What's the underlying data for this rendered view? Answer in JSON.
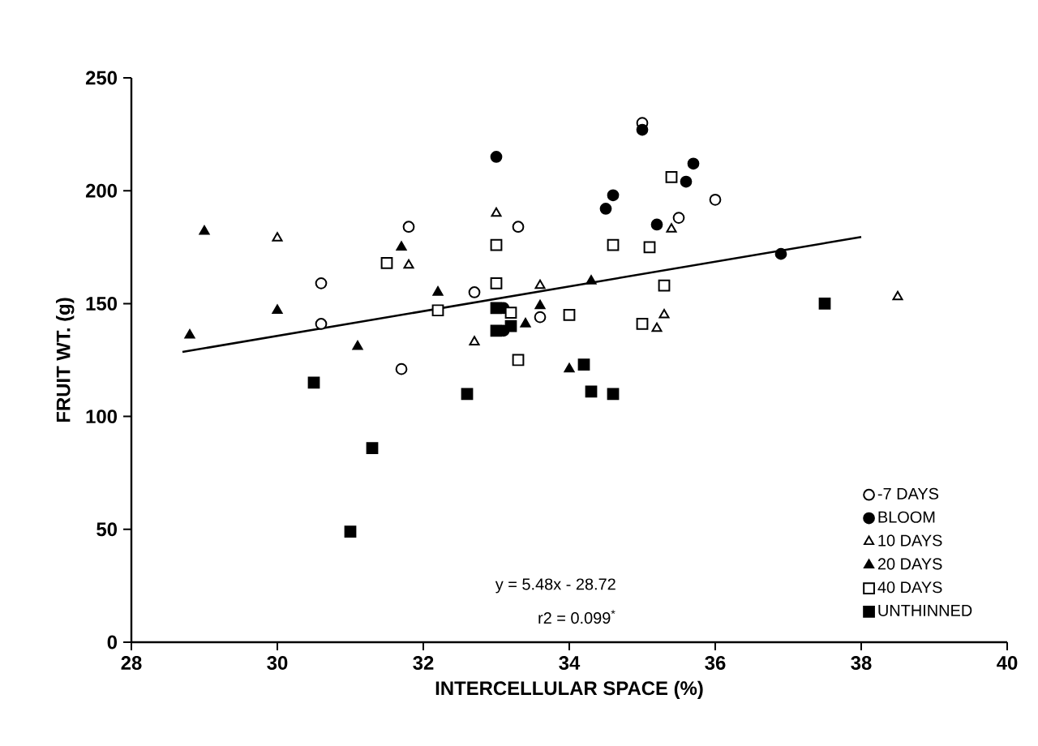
{
  "chart_data": {
    "type": "scatter",
    "xlabel": "INTERCELLULAR SPACE (%)",
    "ylabel": "FRUIT WT. (g)",
    "xlim": [
      28,
      40
    ],
    "xticks": [
      28,
      30,
      32,
      34,
      36,
      38,
      40
    ],
    "ylim": [
      0,
      250
    ],
    "yticks": [
      0,
      50,
      100,
      150,
      200,
      250
    ],
    "legend": "bottom right",
    "grid": false,
    "annotations": [
      "y = 5.48x - 28.72",
      "r2 = 0.099$^{*}$"
    ],
    "series": [
      {
        "name": "-7 DAYS",
        "color": "#ffffff",
        "marker": "circle",
        "x": [
          30.6,
          30.6,
          31.7,
          31.8,
          32.7,
          33.3,
          33.6,
          35.0,
          35.5,
          36.0
        ],
        "values": [
          159,
          141,
          121,
          184,
          155,
          184,
          144,
          230,
          188,
          196
        ]
      },
      {
        "name": "BLOOM",
        "color": "#000000",
        "marker": "circle",
        "x": [
          33.0,
          35.0,
          35.7,
          35.6,
          34.6,
          34.5,
          35.2,
          36.9,
          33.1,
          33.1
        ],
        "values": [
          215,
          227,
          212,
          204,
          198,
          192,
          185,
          172,
          148,
          138
        ]
      },
      {
        "name": "10 DAYS",
        "color": "#ffffff",
        "marker": "triangle",
        "x": [
          30.0,
          31.8,
          32.7,
          33.0,
          33.6,
          35.2,
          35.3,
          35.4,
          38.5
        ],
        "values": [
          179,
          167,
          133,
          190,
          158,
          139,
          145,
          183,
          153
        ]
      },
      {
        "name": "20 DAYS",
        "color": "#000000",
        "marker": "triangle",
        "x": [
          28.8,
          29.0,
          30.0,
          31.1,
          31.7,
          32.2,
          33.4,
          33.6,
          34.0,
          34.3
        ],
        "values": [
          136,
          182,
          147,
          131,
          175,
          155,
          141,
          149,
          121,
          160
        ]
      },
      {
        "name": "40 DAYS",
        "color": "#ffffff",
        "marker": "square",
        "x": [
          31.5,
          32.2,
          33.0,
          33.0,
          33.2,
          33.3,
          34.0,
          34.6,
          35.0,
          35.1,
          35.3,
          35.4
        ],
        "values": [
          168,
          147,
          159,
          176,
          146,
          125,
          145,
          176,
          141,
          175,
          158,
          206
        ]
      },
      {
        "name": "UNTHINNED",
        "color": "#000000",
        "marker": "square",
        "x": [
          30.5,
          31.3,
          31.0,
          32.6,
          33.0,
          33.0,
          33.2,
          34.2,
          34.3,
          34.6,
          37.5
        ],
        "values": [
          115,
          86,
          49,
          110,
          148,
          138,
          140,
          123,
          111,
          110,
          150
        ]
      },
      {
        "type": "line",
        "color": "#000000",
        "marker": "none",
        "x": [
          28.7,
          38.0
        ],
        "values": [
          128.6,
          179.5
        ]
      }
    ]
  }
}
